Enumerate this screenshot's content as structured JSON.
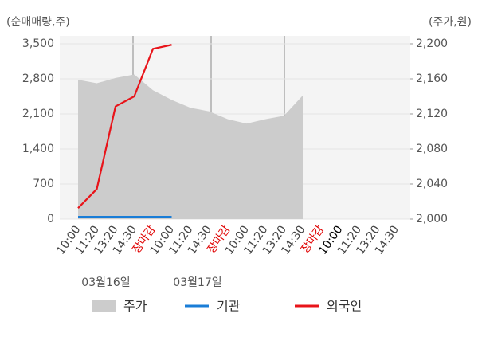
{
  "chart_data": {
    "type": "combo",
    "y_axis_label": "(순매매량,주)",
    "y2_axis_label": "(주가,원)",
    "categories": [
      "10:00",
      "11:20",
      "13:20",
      "14:30",
      "장마감",
      "10:00",
      "11:20",
      "14:30",
      "장마감",
      "10:00",
      "11:20",
      "13:20",
      "14:30",
      "장마감",
      "10:00",
      "11:20",
      "13:20",
      "14:30"
    ],
    "category_colors": [
      "#444",
      "#444",
      "#444",
      "#444",
      "#e00000",
      "#444",
      "#444",
      "#444",
      "#e00000",
      "#444",
      "#444",
      "#444",
      "#444",
      "#e00000",
      "#000",
      "#444",
      "#444",
      "#444"
    ],
    "dates": [
      "03월16일",
      "03월17일"
    ],
    "series": [
      {
        "name": "주가",
        "color": "#cccccc",
        "axis": "y2",
        "values": [
          2159,
          2155,
          2161,
          2165,
          2147,
          2136,
          2127,
          2123,
          2114,
          2109,
          2114,
          2118,
          2141,
          null,
          null,
          null,
          null,
          null
        ]
      },
      {
        "name": "기관",
        "color": "#1a7dd7",
        "values": [
          40,
          40,
          40,
          40,
          40,
          40,
          null,
          null,
          null,
          null,
          null,
          null,
          null,
          null,
          null,
          null,
          null,
          null
        ]
      },
      {
        "name": "외국인",
        "color": "#e8141a",
        "values": [
          220,
          600,
          2250,
          2450,
          3400,
          3480,
          null,
          null,
          null,
          null,
          null,
          null,
          null,
          null,
          null,
          null,
          null,
          null
        ]
      }
    ],
    "ylim": [
      0,
      3500
    ],
    "yticks": [
      0,
      700,
      {
        "value": 1400,
        "label": "1,400"
      },
      {
        "value": 2100,
        "label": "2,100"
      },
      {
        "value": 2800,
        "label": "2,800"
      },
      {
        "value": 3500,
        "label": "3,500"
      }
    ],
    "y2lim": [
      2000,
      2200
    ],
    "y2ticks": [
      {
        "value": 2000,
        "label": "2,000"
      },
      {
        "value": 2040,
        "label": "2,040"
      },
      {
        "value": 2080,
        "label": "2,080"
      },
      {
        "value": 2120,
        "label": "2,120"
      },
      {
        "value": 2160,
        "label": "2,160"
      },
      {
        "value": 2200,
        "label": "2,200"
      }
    ],
    "grid": true
  }
}
